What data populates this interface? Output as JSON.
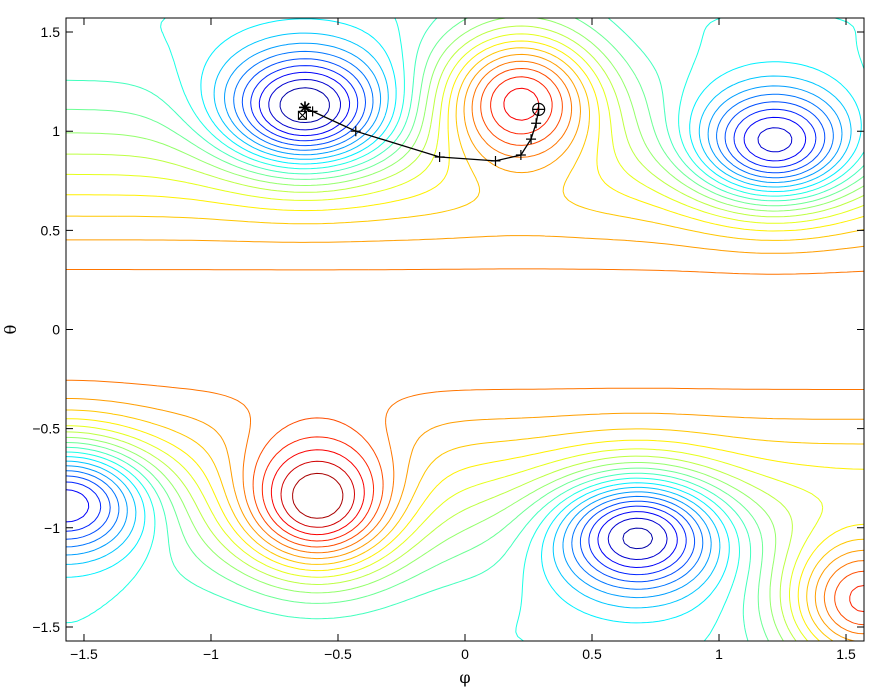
{
  "chart_data": {
    "type": "contour",
    "title": "",
    "xlabel": "φ",
    "ylabel": "θ",
    "xlim": [
      -1.5708,
      1.5708
    ],
    "ylim": [
      -1.5708,
      1.5708
    ],
    "x_ticks": [
      -1.5,
      -1,
      -0.5,
      0,
      0.5,
      1,
      1.5
    ],
    "y_ticks": [
      -1.5,
      -1,
      -0.5,
      0,
      0.5,
      1,
      1.5
    ],
    "x_tick_labels": [
      "−1.5",
      "−1",
      "−0.5",
      "0",
      "0.5",
      "1",
      "1.5"
    ],
    "y_tick_labels": [
      "−1.5",
      "−1",
      "−0.5",
      "0",
      "0.5",
      "1",
      "1.5"
    ],
    "grid": false,
    "colormap": "jet",
    "contour_levels": 24,
    "minima": [
      {
        "phi": -0.63,
        "theta": 1.1
      },
      {
        "phi": 1.22,
        "theta": 0.92
      },
      {
        "phi": 0.68,
        "theta": -1.02
      },
      {
        "phi": -1.57,
        "theta": -0.85
      }
    ],
    "maxima": [
      {
        "phi": -0.58,
        "theta": -0.9
      },
      {
        "phi": 0.22,
        "theta": 1.18
      },
      {
        "phi": 1.57,
        "theta": -1.38
      }
    ],
    "path": {
      "points": [
        {
          "phi": 0.29,
          "theta": 1.11
        },
        {
          "phi": 0.28,
          "theta": 1.04
        },
        {
          "phi": 0.26,
          "theta": 0.96
        },
        {
          "phi": 0.22,
          "theta": 0.88
        },
        {
          "phi": 0.12,
          "theta": 0.85
        },
        {
          "phi": -0.1,
          "theta": 0.87
        },
        {
          "phi": -0.43,
          "theta": 1.0
        },
        {
          "phi": -0.6,
          "theta": 1.1
        },
        {
          "phi": -0.63,
          "theta": 1.12
        }
      ],
      "line_color": "#000000",
      "start_marker": {
        "phi": 0.29,
        "theta": 1.11,
        "symbol": "circle-plus"
      },
      "end_marker": {
        "phi": -0.63,
        "theta": 1.12,
        "symbol": "asterisk"
      },
      "reference_marker": {
        "phi": -0.64,
        "theta": 1.08,
        "symbol": "square-x"
      }
    }
  }
}
